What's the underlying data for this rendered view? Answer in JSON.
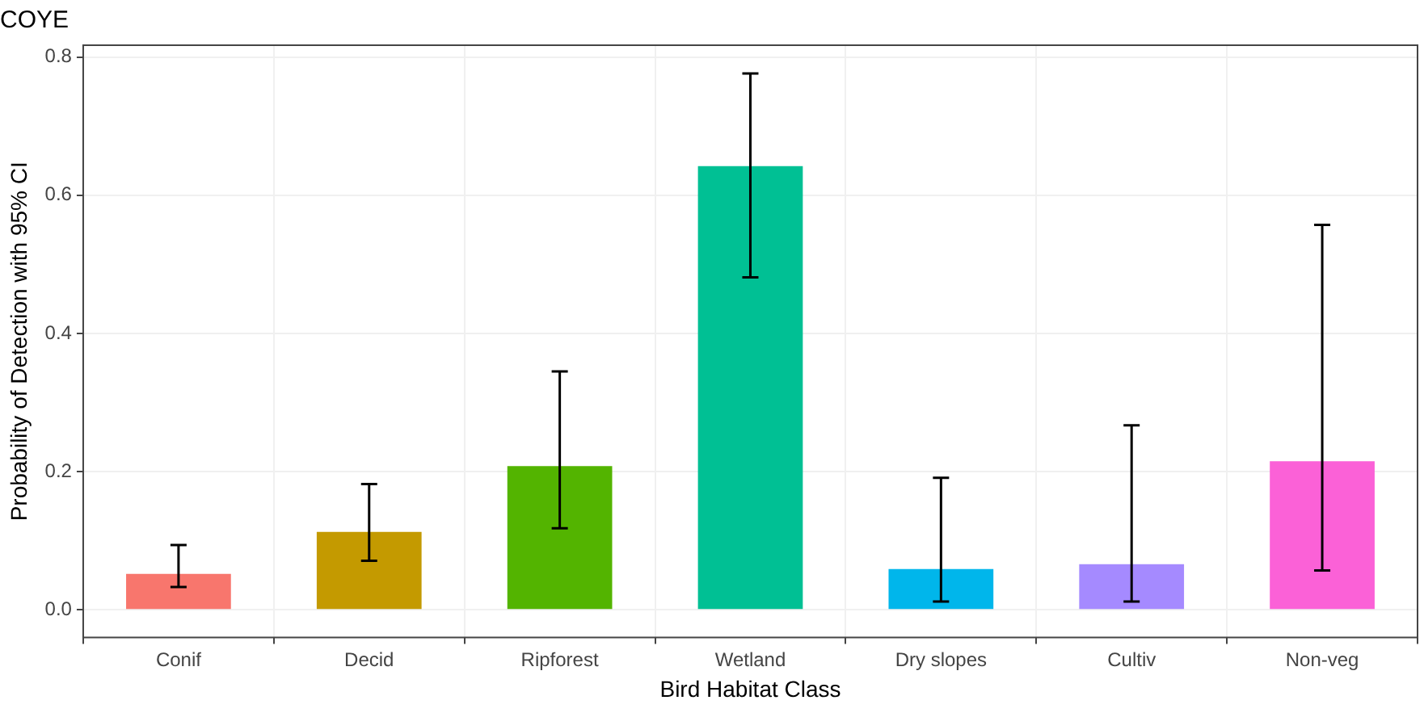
{
  "chart_data": {
    "type": "bar",
    "title": "COYE",
    "xlabel": "Bird Habitat Class",
    "ylabel": "Probability of Detection with 95% CI",
    "categories": [
      "Conif",
      "Decid",
      "Ripforest",
      "Wetland",
      "Dry slopes",
      "Cultiv",
      "Non-veg"
    ],
    "values": [
      0.052,
      0.113,
      0.208,
      0.642,
      0.059,
      0.066,
      0.215
    ],
    "colors": [
      "#f8766d",
      "#c49a00",
      "#53b400",
      "#00c094",
      "#00b6eb",
      "#a58aff",
      "#fb61d7"
    ],
    "errors": [
      [
        0.033,
        0.094
      ],
      [
        0.071,
        0.182
      ],
      [
        0.118,
        0.345
      ],
      [
        0.481,
        0.776
      ],
      [
        0.012,
        0.191
      ],
      [
        0.012,
        0.267
      ],
      [
        0.057,
        0.557
      ]
    ],
    "ylim": [
      -0.04,
      0.817
    ],
    "yticks": [
      {
        "value": 0,
        "label": "0.0"
      },
      {
        "value": 0.2,
        "label": "0.2"
      },
      {
        "value": 0.4,
        "label": "0.4"
      },
      {
        "value": 0.6,
        "label": "0.6"
      },
      {
        "value": 0.8,
        "label": "0.8"
      }
    ],
    "grid": true
  }
}
